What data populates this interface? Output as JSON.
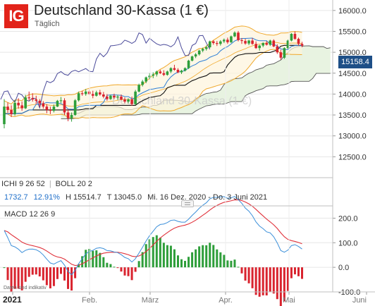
{
  "header": {
    "logo": "IG",
    "title": "Deutschland 30-Kassa (1 €)",
    "subtitle": "Täglich",
    "watermark": "Deutschland 30-Kassa (1 €)"
  },
  "indicators": {
    "ichi": {
      "name": "ICHI",
      "p1": "9",
      "p2": "26",
      "p3": "52"
    },
    "boll": {
      "name": "BOLL",
      "p1": "20",
      "p2": "2"
    },
    "macd": {
      "name": "MACD",
      "p1": "12",
      "p2": "26",
      "p3": "9"
    }
  },
  "stats": {
    "change": "1732.7",
    "change_pct": "12.91%",
    "high": "H 15514.7",
    "low": "T 13045.0",
    "range": "Mi. 16 Dez. 2020 - Do. 3 Juni 2021"
  },
  "last_price": "15158.4",
  "disclaimer": "Daten sind indikativ",
  "colors": {
    "logo": "#e2231a",
    "bull": "#2e9e3a",
    "bear": "#d9232e",
    "price_tag": "#1e4f87",
    "boll": "#f0a82a",
    "cloud_fill": "#e8f3e1",
    "ichi_line": "#555555",
    "chikou": "#4a4a9a",
    "tenkan": "#2d7fd6",
    "kijun": "#111111",
    "macd": "#3b8fd9",
    "signal": "#e0313a"
  },
  "chart_data": [
    {
      "type": "candlestick",
      "title": "Deutschland 30-Kassa (1 €)",
      "ylim": [
        12000,
        16250
      ],
      "y_ticks": [
        "12500.0",
        "13000.0",
        "13500.0",
        "14000.0",
        "14500.0",
        "15000.0",
        "15500.0",
        "16000.0"
      ],
      "x_ticks": [
        "2021",
        "Feb.",
        "März",
        "Apr.",
        "Mai",
        "Juni"
      ],
      "candles": [
        [
          13280,
          13880,
          13180,
          13700
        ],
        [
          13700,
          13800,
          13550,
          13620
        ],
        [
          13620,
          13730,
          13450,
          13520
        ],
        [
          13520,
          13860,
          13480,
          13790
        ],
        [
          13790,
          13900,
          13650,
          13730
        ],
        [
          13730,
          13820,
          13600,
          13660
        ],
        [
          13660,
          13980,
          13640,
          13920
        ],
        [
          13920,
          14060,
          13850,
          13900
        ],
        [
          13900,
          14020,
          13820,
          13870
        ],
        [
          13870,
          13960,
          13760,
          13840
        ],
        [
          13840,
          13880,
          13700,
          13780
        ],
        [
          13780,
          13830,
          13650,
          13700
        ],
        [
          13700,
          13760,
          13540,
          13620
        ],
        [
          13620,
          13700,
          13520,
          13600
        ],
        [
          13600,
          13750,
          13560,
          13700
        ],
        [
          13700,
          13860,
          13690,
          13840
        ],
        [
          13840,
          13930,
          13780,
          13850
        ],
        [
          13850,
          13900,
          13500,
          13560
        ],
        [
          13560,
          13640,
          13350,
          13420
        ],
        [
          13420,
          13560,
          13340,
          13500
        ],
        [
          13500,
          13880,
          13480,
          13850
        ],
        [
          13850,
          14060,
          13820,
          14020
        ],
        [
          14020,
          14080,
          13960,
          14000
        ],
        [
          14000,
          14120,
          13960,
          14060
        ],
        [
          14060,
          14110,
          13980,
          14000
        ],
        [
          14000,
          14080,
          13900,
          13960
        ],
        [
          13960,
          14080,
          13940,
          14040
        ],
        [
          14040,
          14100,
          13960,
          13990
        ],
        [
          13990,
          14050,
          13900,
          13940
        ],
        [
          13940,
          14000,
          13840,
          13880
        ],
        [
          13880,
          13980,
          13860,
          13960
        ],
        [
          13960,
          14010,
          13880,
          13920
        ],
        [
          13920,
          13980,
          13860,
          13940
        ],
        [
          13940,
          13990,
          13850,
          13870
        ],
        [
          13870,
          13920,
          13780,
          13820
        ],
        [
          13820,
          13900,
          13780,
          13870
        ],
        [
          13870,
          13940,
          13720,
          13760
        ],
        [
          13760,
          14100,
          13740,
          14060
        ],
        [
          14060,
          14250,
          14040,
          14220
        ],
        [
          14220,
          14340,
          14180,
          14300
        ],
        [
          14300,
          14420,
          14260,
          14400
        ],
        [
          14400,
          14500,
          14350,
          14440
        ],
        [
          14440,
          14520,
          14380,
          14470
        ],
        [
          14470,
          14560,
          14420,
          14540
        ],
        [
          14540,
          14580,
          14480,
          14500
        ],
        [
          14500,
          14570,
          14430,
          14460
        ],
        [
          14460,
          14560,
          14440,
          14540
        ],
        [
          14540,
          14640,
          14500,
          14620
        ],
        [
          14620,
          14700,
          14560,
          14580
        ],
        [
          14580,
          14620,
          14500,
          14520
        ],
        [
          14520,
          14580,
          14480,
          14560
        ],
        [
          14560,
          14640,
          14540,
          14620
        ],
        [
          14620,
          14820,
          14600,
          14800
        ],
        [
          14800,
          14920,
          14780,
          14900
        ],
        [
          14900,
          14980,
          14860,
          14950
        ],
        [
          14950,
          15060,
          14920,
          15040
        ],
        [
          15040,
          15110,
          15000,
          15080
        ],
        [
          15080,
          15160,
          15040,
          15120
        ],
        [
          15120,
          15280,
          15100,
          15260
        ],
        [
          15260,
          15290,
          15180,
          15220
        ],
        [
          15220,
          15270,
          15150,
          15200
        ],
        [
          15200,
          15290,
          15160,
          15260
        ],
        [
          15260,
          15330,
          15220,
          15300
        ],
        [
          15300,
          15350,
          15200,
          15240
        ],
        [
          15240,
          15400,
          15220,
          15380
        ],
        [
          15380,
          15500,
          15360,
          15470
        ],
        [
          15470,
          15510,
          15260,
          15290
        ],
        [
          15290,
          15340,
          15200,
          15270
        ],
        [
          15270,
          15320,
          15180,
          15210
        ],
        [
          15210,
          15300,
          15170,
          15280
        ],
        [
          15280,
          15340,
          15180,
          15200
        ],
        [
          15200,
          15260,
          15080,
          15100
        ],
        [
          15100,
          15180,
          15040,
          15160
        ],
        [
          15160,
          15240,
          15120,
          15220
        ],
        [
          15220,
          15270,
          15160,
          15180
        ],
        [
          15180,
          15300,
          15150,
          15280
        ],
        [
          15280,
          15310,
          15120,
          15140
        ],
        [
          15140,
          15190,
          14960,
          15000
        ],
        [
          15000,
          15060,
          14820,
          14870
        ],
        [
          14870,
          15120,
          14840,
          15100
        ],
        [
          15100,
          15300,
          15080,
          15280
        ],
        [
          15280,
          15460,
          15260,
          15440
        ],
        [
          15440,
          15500,
          15300,
          15320
        ],
        [
          15320,
          15350,
          15160,
          15200
        ],
        [
          15200,
          15250,
          15120,
          15158
        ]
      ],
      "bollinger": {
        "upper": [],
        "middle": [],
        "lower": []
      },
      "ichimoku": {
        "tenkan": [],
        "kijun": [],
        "senkou_a": [],
        "senkou_b": [],
        "chikou": []
      }
    },
    {
      "type": "line",
      "title": "MACD 12 26 9",
      "ylim": [
        -100,
        250
      ],
      "y_ticks": [
        "200.0",
        "100.0",
        "0.0",
        "-100.0"
      ],
      "series": [
        {
          "name": "MACD",
          "values": []
        },
        {
          "name": "Signal",
          "values": []
        },
        {
          "name": "Histogram",
          "values": []
        }
      ]
    }
  ]
}
